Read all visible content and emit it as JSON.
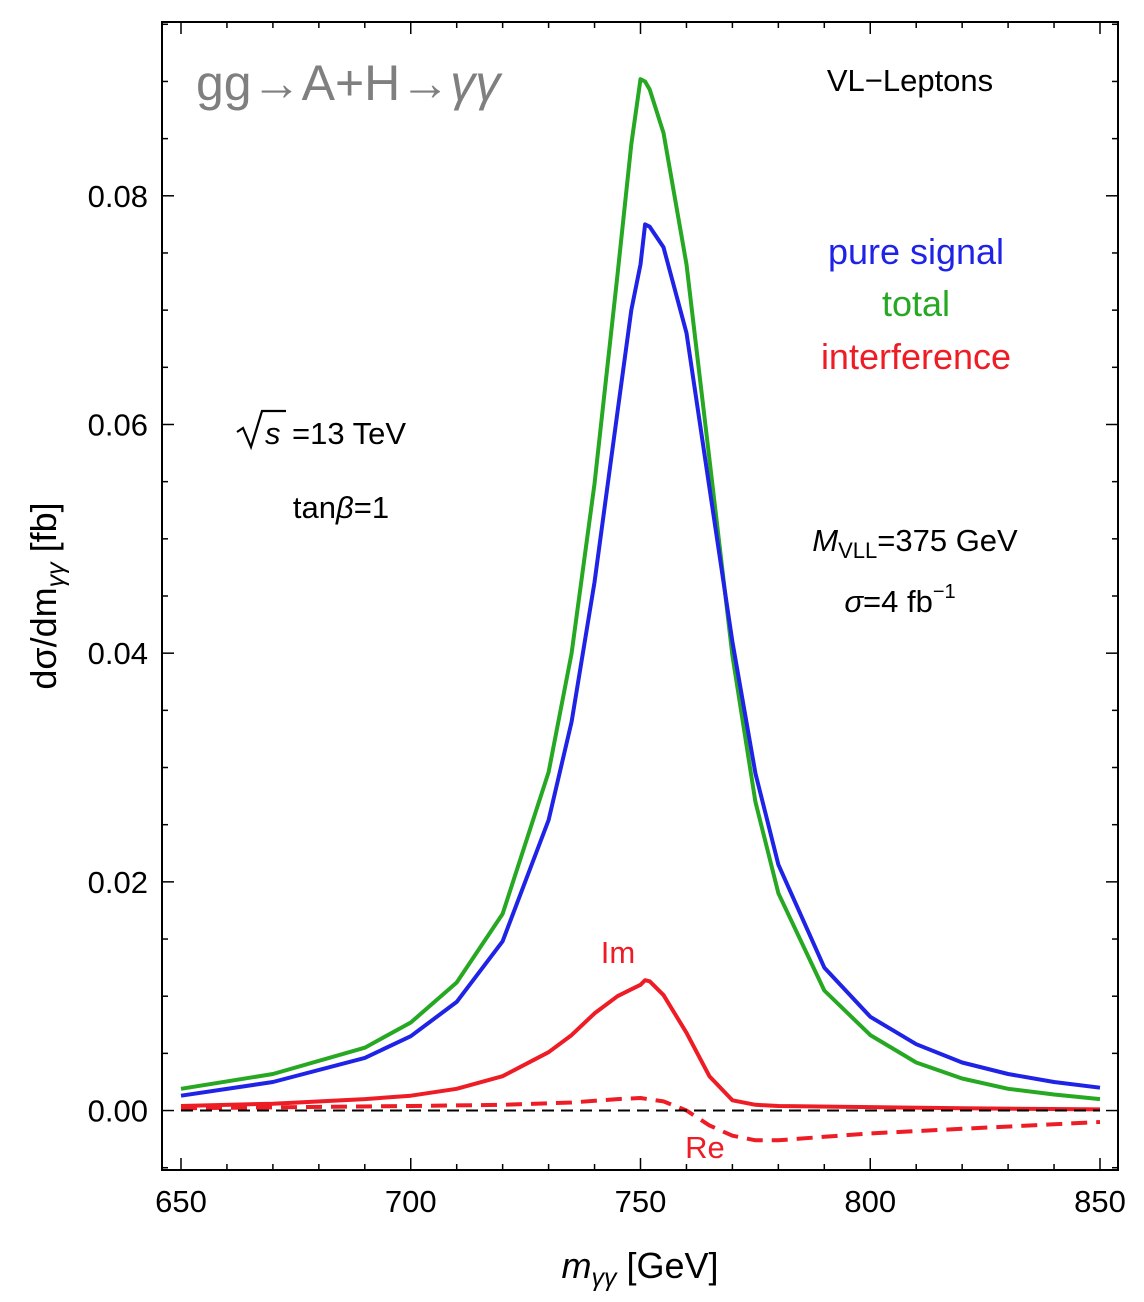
{
  "chart_data": {
    "type": "line",
    "title_main": "gg→A+H→",
    "title_gamma": "γγ",
    "xlabel_var": "m",
    "xlabel_sub": "γγ",
    "xlabel_unit": " [GeV]",
    "ylabel_main": "dσ/dm",
    "ylabel_sub": "γγ",
    "ylabel_unit": " [fb]",
    "xlim": [
      650,
      850
    ],
    "ylim": [
      -0.0052,
      0.0952
    ],
    "x_ticks": [
      650,
      700,
      750,
      800,
      850
    ],
    "x_tick_labels": [
      "650",
      "700",
      "750",
      "800",
      "850"
    ],
    "y_ticks": [
      0,
      0.02,
      0.04,
      0.06,
      0.08
    ],
    "y_tick_labels": [
      "0.00",
      "0.02",
      "0.04",
      "0.06",
      "0.08"
    ],
    "legend": [
      {
        "name": "pure signal",
        "color": "#1f23e6"
      },
      {
        "name": "total",
        "color": "#26a823"
      },
      {
        "name": "interference",
        "color": "#ee1c25"
      }
    ],
    "annotations": {
      "process": "VL−Leptons",
      "sqrt_s": "s",
      "energy": "=13 TeV",
      "tan_prefix": "tan",
      "tan_beta": "β",
      "tan_value": "=1",
      "mass_var": "M",
      "mass_sub": "VLL",
      "mass_value": "=375 GeV",
      "sigma_sym": "σ",
      "sigma_value": "=4 fb",
      "sigma_exp": "−1",
      "im_label": "Im",
      "re_label": "Re"
    },
    "series": [
      {
        "name": "total",
        "color": "#26a823",
        "style": "solid",
        "x": [
          650,
          670,
          690,
          700,
          710,
          720,
          730,
          735,
          740,
          745,
          748,
          750,
          751,
          752,
          755,
          760,
          765,
          770,
          775,
          780,
          790,
          800,
          810,
          820,
          830,
          840,
          850
        ],
        "y": [
          0.0019,
          0.0032,
          0.0055,
          0.0077,
          0.0112,
          0.0172,
          0.0296,
          0.04,
          0.0548,
          0.0731,
          0.0845,
          0.0902,
          0.09,
          0.0893,
          0.0855,
          0.074,
          0.057,
          0.0398,
          0.027,
          0.019,
          0.0105,
          0.0066,
          0.0042,
          0.0028,
          0.0019,
          0.0014,
          0.001
        ]
      },
      {
        "name": "pure signal",
        "color": "#1f23e6",
        "style": "solid",
        "x": [
          650,
          670,
          690,
          700,
          710,
          720,
          730,
          735,
          740,
          745,
          748,
          750,
          751,
          752,
          755,
          760,
          765,
          770,
          775,
          780,
          790,
          800,
          810,
          820,
          830,
          840,
          850
        ],
        "y": [
          0.0013,
          0.0025,
          0.0046,
          0.0065,
          0.0095,
          0.0148,
          0.0254,
          0.034,
          0.0462,
          0.0611,
          0.07,
          0.074,
          0.0775,
          0.0773,
          0.0755,
          0.068,
          0.0545,
          0.041,
          0.0295,
          0.0215,
          0.0125,
          0.0082,
          0.0058,
          0.0042,
          0.0032,
          0.0025,
          0.002
        ]
      },
      {
        "name": "interference (Im)",
        "color": "#ee1c25",
        "style": "solid",
        "x": [
          650,
          670,
          690,
          700,
          710,
          720,
          730,
          735,
          740,
          745,
          748,
          750,
          751,
          752,
          755,
          760,
          765,
          770,
          775,
          780,
          800,
          820,
          850
        ],
        "y": [
          0.0004,
          0.0006,
          0.001,
          0.0013,
          0.0019,
          0.003,
          0.0051,
          0.0066,
          0.0085,
          0.01,
          0.0106,
          0.011,
          0.0114,
          0.0113,
          0.0101,
          0.0068,
          0.003,
          0.0009,
          0.0005,
          0.0004,
          0.0003,
          0.0002,
          0.0001
        ]
      },
      {
        "name": "interference (Re)",
        "color": "#ee1c25",
        "style": "dashed",
        "x": [
          650,
          700,
          720,
          735,
          745,
          750,
          755,
          760,
          765,
          770,
          775,
          780,
          790,
          800,
          820,
          850
        ],
        "y": [
          0.0002,
          0.0004,
          0.0005,
          0.0007,
          0.001,
          0.0011,
          0.0008,
          0.0,
          -0.0013,
          -0.0022,
          -0.0026,
          -0.0026,
          -0.0023,
          -0.002,
          -0.0016,
          -0.001
        ]
      },
      {
        "name": "zero",
        "color": "#000000",
        "style": "dashed",
        "x": [
          650,
          850
        ],
        "y": [
          0,
          0
        ]
      }
    ]
  }
}
